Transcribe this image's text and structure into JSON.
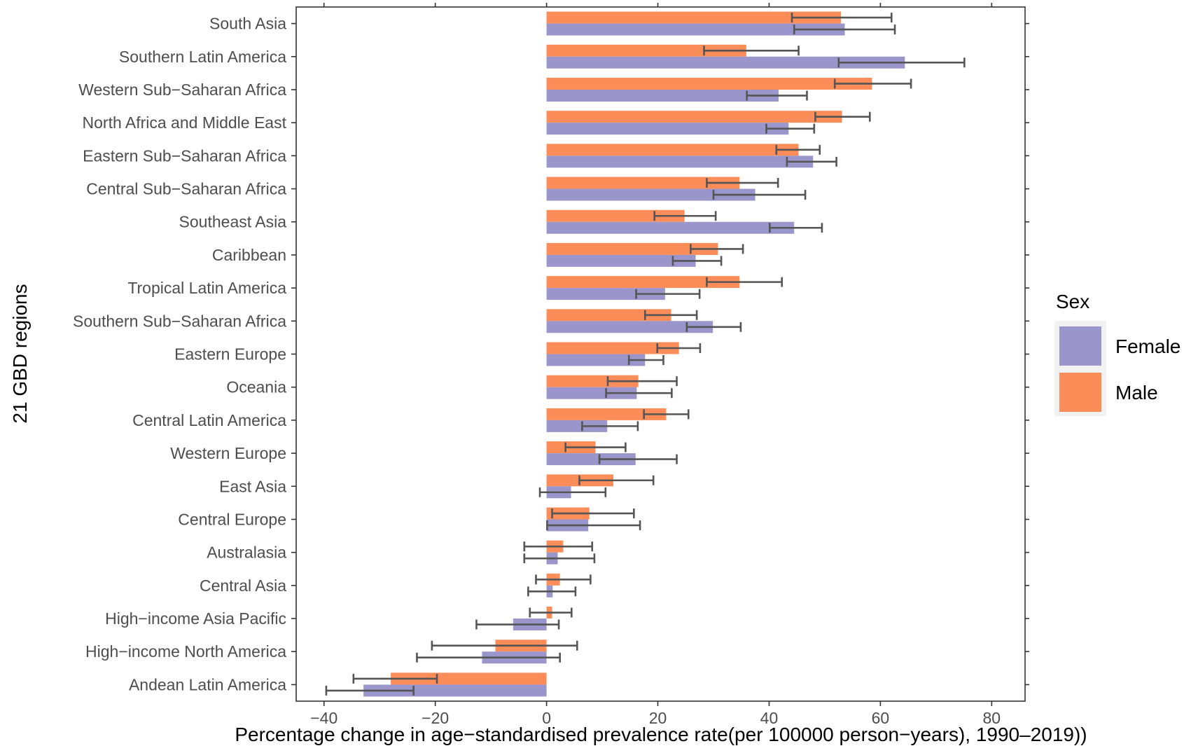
{
  "chart_data": {
    "type": "bar",
    "orientation": "horizontal",
    "title": "",
    "xlabel": "Percentage change in age−standardised prevalence rate(per 100000 person−years), 1990–2019))",
    "ylabel": "21 GBD regions",
    "xlim": [
      -45,
      86
    ],
    "xticks": [
      -40,
      -20,
      0,
      20,
      40,
      60,
      80
    ],
    "xtick_labels": [
      "−40",
      "−20",
      "0",
      "20",
      "40",
      "60",
      "80"
    ],
    "grid": false,
    "legend": {
      "title": "Sex",
      "placement": "right",
      "entries": [
        {
          "name": "Female",
          "color": "#9a96cb"
        },
        {
          "name": "Male",
          "color": "#fc8d59"
        }
      ]
    },
    "categories": [
      "South Asia",
      "Southern Latin America",
      "Western Sub−Saharan Africa",
      "North Africa and Middle East",
      "Eastern Sub−Saharan Africa",
      "Central Sub−Saharan Africa",
      "Southeast Asia",
      "Caribbean",
      "Tropical Latin America",
      "Southern Sub−Saharan Africa",
      "Eastern Europe",
      "Oceania",
      "Central Latin America",
      "Western Europe",
      "East Asia",
      "Central Europe",
      "Australasia",
      "Central Asia",
      "High−income Asia Pacific",
      "High−income North America",
      "Andean Latin America"
    ],
    "series": [
      {
        "name": "Male",
        "color": "#fc8d59",
        "values": [
          52.9,
          35.9,
          58.5,
          53.1,
          45.3,
          34.7,
          24.8,
          30.8,
          34.7,
          22.4,
          23.8,
          16.5,
          21.5,
          8.8,
          12.0,
          7.7,
          3.0,
          2.4,
          1.0,
          -9.2,
          -28.0
        ],
        "lower": [
          44.1,
          28.3,
          51.8,
          48.3,
          41.3,
          28.8,
          19.4,
          25.9,
          28.8,
          17.7,
          19.9,
          11.0,
          17.5,
          3.4,
          5.9,
          1.0,
          -4.0,
          -1.9,
          -3.0,
          -20.6,
          -34.7
        ],
        "upper": [
          62.0,
          45.3,
          65.5,
          58.1,
          49.1,
          41.6,
          30.4,
          35.3,
          42.3,
          27.0,
          27.6,
          23.4,
          25.5,
          14.2,
          19.2,
          15.7,
          8.2,
          7.9,
          4.5,
          5.5,
          -19.7
        ]
      },
      {
        "name": "Female",
        "color": "#9a96cb",
        "values": [
          53.6,
          64.4,
          41.7,
          43.5,
          47.9,
          37.5,
          44.5,
          26.8,
          21.3,
          29.9,
          17.7,
          16.2,
          10.9,
          16.0,
          4.4,
          7.5,
          2.0,
          1.1,
          -6.0,
          -11.6,
          -32.9
        ],
        "lower": [
          44.5,
          52.5,
          36.0,
          39.5,
          43.2,
          30.0,
          40.1,
          22.7,
          16.1,
          25.2,
          14.8,
          10.7,
          6.4,
          9.5,
          -1.2,
          0.1,
          -4.0,
          -3.3,
          -12.6,
          -23.3,
          -39.6
        ],
        "upper": [
          62.6,
          75.1,
          46.8,
          48.1,
          52.1,
          46.5,
          49.5,
          31.4,
          27.5,
          34.9,
          21.0,
          22.5,
          16.4,
          23.4,
          10.6,
          16.8,
          8.6,
          5.2,
          2.2,
          2.4,
          -23.9
        ]
      }
    ]
  }
}
